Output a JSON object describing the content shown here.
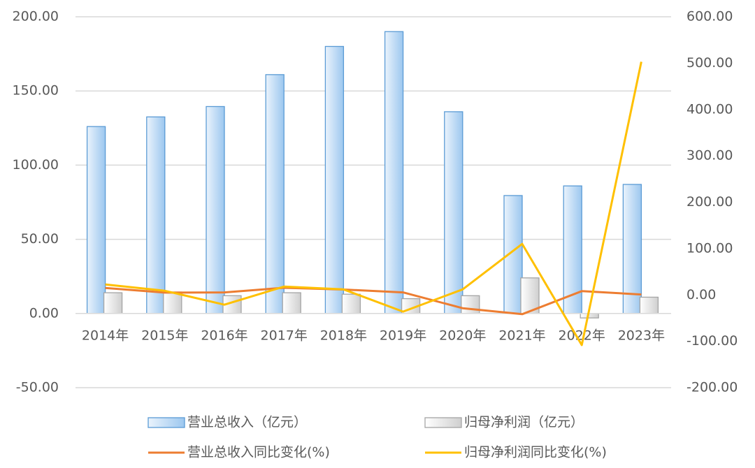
{
  "chart_data": {
    "type": "bar-line",
    "categories": [
      "2014年",
      "2015年",
      "2016年",
      "2017年",
      "2018年",
      "2019年",
      "2020年",
      "2021年",
      "2022年",
      "2023年"
    ],
    "series": [
      {
        "name": "营业总收入（亿元）",
        "type": "bar",
        "color": "#5b9bd5",
        "values": [
          126,
          132.5,
          139.5,
          161,
          180,
          190,
          136,
          79.5,
          86,
          87
        ]
      },
      {
        "name": "归母净利润（亿元）",
        "type": "bar",
        "color": "#a5a5a5",
        "values": [
          14,
          14.5,
          12,
          14,
          13,
          10,
          12,
          24,
          -3,
          11
        ]
      },
      {
        "name": "营业总收入同比变化(%)",
        "type": "line",
        "axis": "y2",
        "color": "#ed7d31",
        "values": [
          15,
          5,
          5.5,
          15.5,
          11.7,
          5.5,
          -28.6,
          -41.5,
          8.2,
          1
        ]
      },
      {
        "name": "归母净利润同比变化(%)",
        "type": "line",
        "axis": "y2",
        "color": "#ffc000",
        "values": [
          22.6,
          9,
          -21,
          18,
          12,
          -36,
          12,
          110,
          -108,
          503
        ]
      }
    ],
    "ylim": [
      -50,
      200
    ],
    "yticks": [
      {
        "value": -50,
        "label": "-50.00"
      },
      {
        "value": 0,
        "label": "0.00"
      },
      {
        "value": 50,
        "label": "50.00"
      },
      {
        "value": 100,
        "label": "100.00"
      },
      {
        "value": 150,
        "label": "150.00"
      },
      {
        "value": 200,
        "label": "200.00"
      }
    ],
    "y2lim": [
      -200,
      600
    ],
    "y2ticks": [
      {
        "value": -200,
        "label": "-200.00"
      },
      {
        "value": -100,
        "label": "-100.00"
      },
      {
        "value": 0,
        "label": "0.00"
      },
      {
        "value": 100,
        "label": "100.00"
      },
      {
        "value": 200,
        "label": "200.00"
      },
      {
        "value": 300,
        "label": "300.00"
      },
      {
        "value": 400,
        "label": "400.00"
      },
      {
        "value": 500,
        "label": "500.00"
      },
      {
        "value": 600,
        "label": "600.00"
      }
    ],
    "grid": true,
    "legend": "bottom"
  }
}
